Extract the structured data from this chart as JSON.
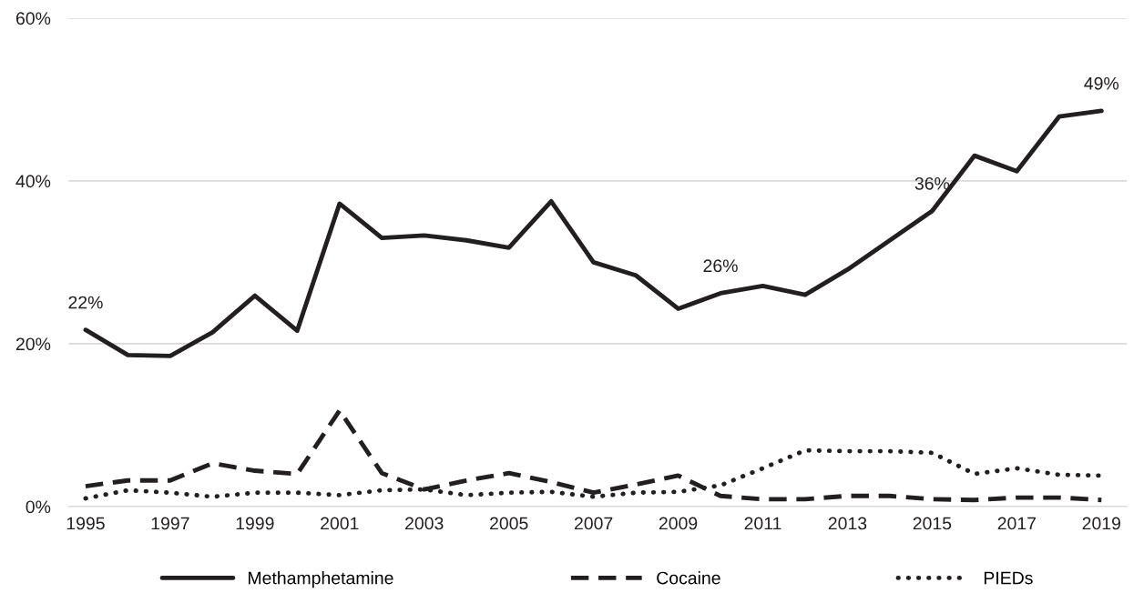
{
  "chart_data": {
    "type": "line",
    "x": [
      1995,
      1996,
      1997,
      1998,
      1999,
      2000,
      2001,
      2002,
      2003,
      2004,
      2005,
      2006,
      2007,
      2008,
      2009,
      2010,
      2011,
      2012,
      2013,
      2014,
      2015,
      2016,
      2017,
      2018,
      2019
    ],
    "series": [
      {
        "name": "Methamphetamine",
        "color": "#231f20",
        "line_style": "solid",
        "values": [
          21.7,
          18.6,
          18.5,
          21.4,
          25.9,
          21.6,
          37.2,
          33.0,
          33.3,
          32.7,
          31.8,
          37.5,
          30.0,
          28.4,
          24.3,
          26.2,
          27.1,
          26.0,
          29.1,
          32.7,
          36.3,
          43.1,
          41.2,
          47.9,
          48.6
        ]
      },
      {
        "name": "Cocaine",
        "color": "#231f20",
        "line_style": "dashed",
        "values": [
          2.5,
          3.2,
          3.2,
          5.3,
          4.4,
          4.0,
          11.8,
          4.1,
          2.1,
          3.2,
          4.1,
          3.0,
          1.7,
          2.7,
          3.8,
          1.3,
          0.9,
          0.9,
          1.3,
          1.3,
          0.9,
          0.8,
          1.1,
          1.1,
          0.8
        ]
      },
      {
        "name": "PIEDs",
        "color": "#231f20",
        "line_style": "dotted",
        "values": [
          1.0,
          2.0,
          1.7,
          1.2,
          1.7,
          1.7,
          1.4,
          2.0,
          2.1,
          1.4,
          1.7,
          1.8,
          1.2,
          1.7,
          1.8,
          2.6,
          4.7,
          6.9,
          6.8,
          6.8,
          6.6,
          4.0,
          4.7,
          3.9,
          3.8
        ]
      }
    ],
    "xlim": [
      1994.6,
      2019.6
    ],
    "xticks": [
      1995,
      1997,
      1999,
      2001,
      2003,
      2005,
      2007,
      2009,
      2011,
      2013,
      2015,
      2017,
      2019
    ],
    "ylim": [
      0,
      60
    ],
    "yticks": [
      {
        "value": 0,
        "label": "0%"
      },
      {
        "value": 20,
        "label": "20%"
      },
      {
        "value": 40,
        "label": "40%"
      },
      {
        "value": 60,
        "label": "60%"
      }
    ],
    "annotations": [
      {
        "text": "22%",
        "x": 1995,
        "y": 21.7
      },
      {
        "text": "26%",
        "x": 2010,
        "y": 26.2
      },
      {
        "text": "36%",
        "x": 2015,
        "y": 36.3
      },
      {
        "text": "49%",
        "x": 2019,
        "y": 48.6
      }
    ],
    "grid": "y",
    "legend": "bottom",
    "marker": "none"
  }
}
